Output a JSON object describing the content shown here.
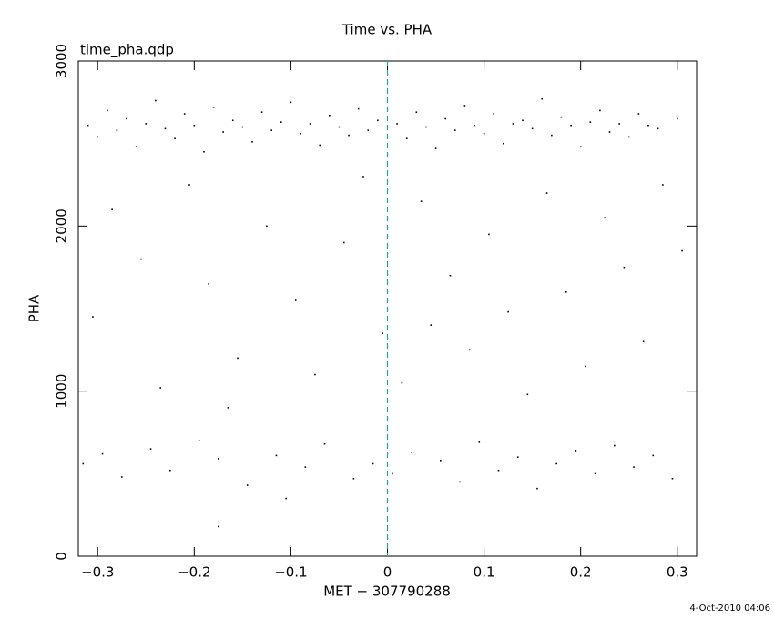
{
  "chart_data": {
    "type": "scatter",
    "title": "Time vs. PHA",
    "subtitle": "time_pha.qdp",
    "x_label": "MET − 307790288",
    "y_label": "PHA",
    "footer": "4-Oct-2010 04:06",
    "color": "#000000",
    "vline": 0,
    "vline_color": "#2a9d9d",
    "xlim": [
      -0.32,
      0.32
    ],
    "xticks": [
      {
        "value": -0.3,
        "label": "−0.3"
      },
      {
        "value": -0.2,
        "label": "−0.2"
      },
      {
        "value": -0.1,
        "label": "−0.1"
      },
      0,
      0.1,
      0.2,
      0.3
    ],
    "ylim": [
      0,
      3000
    ],
    "yticks": [
      0,
      1000,
      2000,
      3000
    ],
    "x": [
      -0.31,
      -0.3,
      -0.29,
      -0.28,
      -0.27,
      -0.26,
      -0.25,
      -0.24,
      -0.23,
      -0.22,
      -0.21,
      -0.2,
      -0.19,
      -0.18,
      -0.17,
      -0.16,
      -0.15,
      -0.14,
      -0.13,
      -0.12,
      -0.11,
      -0.1,
      -0.09,
      -0.08,
      -0.07,
      -0.06,
      -0.05,
      -0.04,
      -0.03,
      -0.02,
      -0.01,
      0.01,
      0.02,
      0.03,
      0.04,
      0.05,
      0.06,
      0.07,
      0.08,
      0.09,
      0.1,
      0.11,
      0.12,
      0.13,
      0.14,
      0.15,
      0.16,
      0.17,
      0.18,
      0.19,
      0.2,
      0.21,
      0.22,
      0.23,
      0.24,
      0.25,
      0.26,
      0.27,
      0.28,
      0.3,
      -0.305,
      -0.285,
      -0.255,
      -0.235,
      -0.205,
      -0.185,
      -0.155,
      -0.125,
      -0.095,
      -0.075,
      -0.045,
      -0.025,
      -0.005,
      0.015,
      0.035,
      0.065,
      0.085,
      0.105,
      0.125,
      0.145,
      0.165,
      0.185,
      0.205,
      0.225,
      0.245,
      0.265,
      0.285,
      0.305,
      -0.165,
      0.045,
      -0.315,
      -0.295,
      -0.275,
      -0.245,
      -0.225,
      -0.195,
      -0.175,
      -0.145,
      -0.115,
      -0.105,
      -0.085,
      -0.065,
      -0.035,
      -0.015,
      0.005,
      0.025,
      0.055,
      0.075,
      0.095,
      0.115,
      0.135,
      0.155,
      0.175,
      0.195,
      0.215,
      0.235,
      0.255,
      0.275,
      0.295,
      -0.175
    ],
    "values": [
      2610,
      2540,
      2700,
      2580,
      2650,
      2480,
      2620,
      2760,
      2590,
      2530,
      2680,
      2610,
      2450,
      2720,
      2570,
      2640,
      2600,
      2510,
      2690,
      2580,
      2630,
      2750,
      2560,
      2620,
      2490,
      2670,
      2600,
      2550,
      2710,
      2580,
      2640,
      2620,
      2530,
      2690,
      2600,
      2470,
      2650,
      2580,
      2730,
      2610,
      2560,
      2680,
      2500,
      2620,
      2640,
      2590,
      2770,
      2550,
      2660,
      2610,
      2480,
      2630,
      2700,
      2570,
      2620,
      2540,
      2680,
      2610,
      2590,
      2650,
      1450,
      2100,
      1800,
      1020,
      2250,
      1650,
      1200,
      2000,
      1550,
      1100,
      1900,
      2300,
      1350,
      1050,
      2150,
      1700,
      1250,
      1950,
      1480,
      980,
      2200,
      1600,
      1150,
      2050,
      1750,
      1300,
      2250,
      1850,
      900,
      1400,
      560,
      620,
      480,
      650,
      520,
      700,
      590,
      430,
      610,
      350,
      540,
      680,
      470,
      560,
      500,
      630,
      580,
      450,
      690,
      520,
      600,
      410,
      560,
      640,
      500,
      670,
      540,
      610,
      470,
      180
    ]
  }
}
